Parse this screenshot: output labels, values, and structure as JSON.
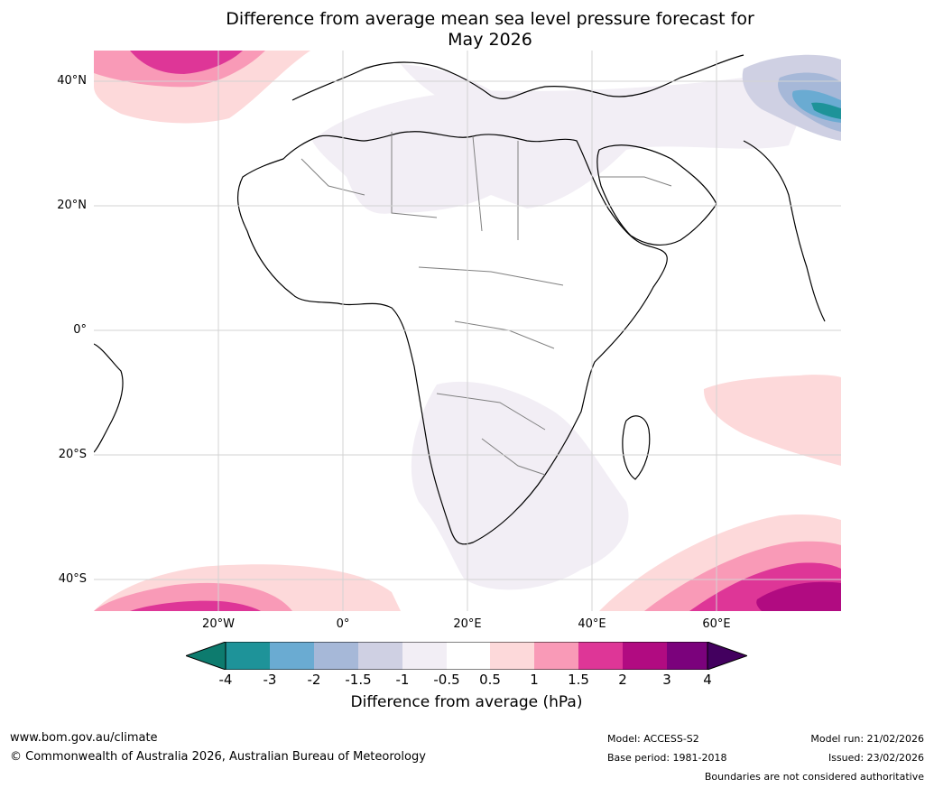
{
  "title_line1": "Difference from average mean sea level pressure forecast for",
  "title_line2": "May 2026",
  "map": {
    "lat_labels": [
      "40°N",
      "20°N",
      "0°",
      "20°S",
      "40°S"
    ],
    "lon_labels": [
      "20°W",
      "0°",
      "20°E",
      "40°E",
      "60°E"
    ],
    "colors": {
      "neg4": "#0d7b6e",
      "neg3": "#1e9399",
      "neg2": "#6aabd2",
      "neg15": "#a6b8d8",
      "neg1": "#cfd0e3",
      "neg05": "#f2eef5",
      "zero": "#ffffff",
      "pos05": "#fdd9da",
      "pos1": "#f99ab7",
      "pos15": "#de3697",
      "pos2": "#b10b81",
      "pos3": "#7b027c",
      "pos4": "#43005f"
    }
  },
  "colorbar": {
    "labels": [
      "-4",
      "-3",
      "-2",
      "-1.5",
      "-1",
      "-0.5",
      "0.5",
      "1",
      "1.5",
      "2",
      "3",
      "4"
    ],
    "title": "Difference from average (hPa)"
  },
  "footer": {
    "url": "www.bom.gov.au/climate",
    "copyright": "© Commonwealth of Australia 2026, Australian Bureau of Meteorology",
    "model": "Model: ACCESS-S2",
    "base_period": "Base period: 1981-2018",
    "model_run": "Model run: 21/02/2026",
    "issued": "Issued: 23/02/2026",
    "disclaimer": "Boundaries are not considered authoritative"
  }
}
